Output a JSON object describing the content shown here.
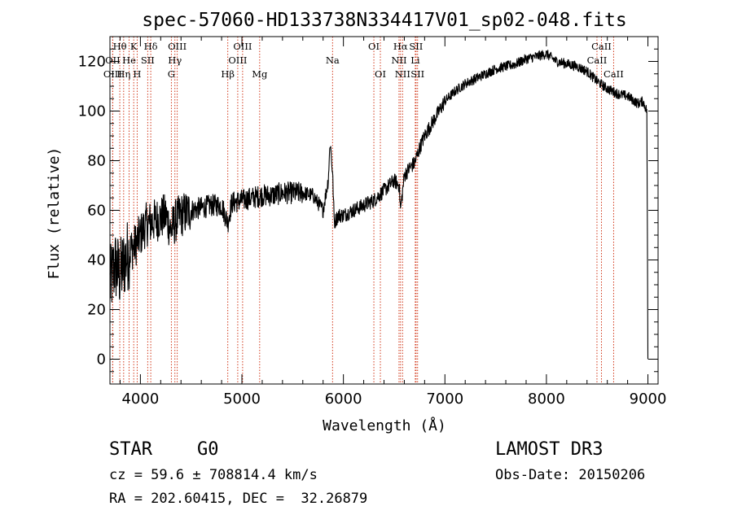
{
  "chart_data": {
    "type": "line",
    "title": "spec-57060-HD133738N334417V01_sp02-048.fits",
    "xlabel": "Wavelength (Å)",
    "ylabel": "Flux (relative)",
    "xlim": [
      3700,
      9100
    ],
    "ylim": [
      -10,
      130
    ],
    "xticks": [
      4000,
      5000,
      6000,
      7000,
      8000,
      9000
    ],
    "yticks": [
      0,
      20,
      40,
      60,
      80,
      100,
      120
    ],
    "series": [
      {
        "name": "flux",
        "x": [
          3700,
          3750,
          3800,
          3850,
          3900,
          3950,
          4000,
          4050,
          4100,
          4150,
          4200,
          4250,
          4300,
          4350,
          4400,
          4500,
          4600,
          4700,
          4800,
          4861,
          4900,
          5000,
          5100,
          5200,
          5300,
          5400,
          5500,
          5600,
          5700,
          5800,
          5850,
          5870,
          5893,
          5910,
          5950,
          6000,
          6100,
          6200,
          6300,
          6400,
          6500,
          6550,
          6563,
          6600,
          6650,
          6700,
          6750,
          6800,
          6900,
          7000,
          7100,
          7200,
          7300,
          7400,
          7500,
          7600,
          7700,
          7800,
          7900,
          8000,
          8100,
          8200,
          8300,
          8400,
          8500,
          8600,
          8700,
          8800,
          8900,
          8950,
          8990,
          9000
        ],
        "y": [
          30,
          38,
          34,
          40,
          44,
          46,
          50,
          54,
          55,
          56,
          57,
          58,
          52,
          56,
          58,
          60,
          61,
          62,
          62,
          55,
          63,
          64,
          65,
          66,
          66,
          67,
          67,
          67,
          66,
          60,
          72,
          88,
          75,
          55,
          58,
          58,
          60,
          62,
          64,
          68,
          72,
          70,
          60,
          74,
          77,
          79,
          85,
          90,
          97,
          104,
          108,
          111,
          113,
          115,
          117,
          118,
          119,
          121,
          122,
          123,
          120,
          119,
          118,
          116,
          112,
          109,
          107,
          106,
          103,
          104,
          100,
          0
        ]
      }
    ],
    "lines": [
      {
        "label": "Hθ",
        "wavelength": 3797,
        "row": 0
      },
      {
        "label": "K",
        "wavelength": 3934,
        "row": 0
      },
      {
        "label": "Hδ",
        "wavelength": 4102,
        "row": 0
      },
      {
        "label": "OIII",
        "wavelength": 4363,
        "row": 0
      },
      {
        "label": "OIII",
        "wavelength": 5007,
        "row": 0
      },
      {
        "label": "OI",
        "wavelength": 6300,
        "row": 0
      },
      {
        "label": "Hα",
        "wavelength": 6563,
        "row": 0
      },
      {
        "label": "SII",
        "wavelength": 6716,
        "row": 0
      },
      {
        "label": "CaII",
        "wavelength": 8542,
        "row": 0
      },
      {
        "label": "OII",
        "wavelength": 3727,
        "row": 1
      },
      {
        "label": "He",
        "wavelength": 3889,
        "row": 1
      },
      {
        "label": "SII",
        "wavelength": 4072,
        "row": 1
      },
      {
        "label": "Hγ",
        "wavelength": 4340,
        "row": 1
      },
      {
        "label": "OIII",
        "wavelength": 4959,
        "row": 1
      },
      {
        "label": "Na",
        "wavelength": 5893,
        "row": 1
      },
      {
        "label": "NII",
        "wavelength": 6548,
        "row": 1
      },
      {
        "label": "Li",
        "wavelength": 6708,
        "row": 1
      },
      {
        "label": "CaII",
        "wavelength": 8498,
        "row": 1
      },
      {
        "label": "OIII",
        "wavelength": 3727,
        "row": 2
      },
      {
        "label": "Hη",
        "wavelength": 3835,
        "row": 2
      },
      {
        "label": "H",
        "wavelength": 3968,
        "row": 2
      },
      {
        "label": "G",
        "wavelength": 4305,
        "row": 2
      },
      {
        "label": "Hβ",
        "wavelength": 4861,
        "row": 2
      },
      {
        "label": "Mg",
        "wavelength": 5175,
        "row": 2
      },
      {
        "label": "OI",
        "wavelength": 6364,
        "row": 2
      },
      {
        "label": "NII",
        "wavelength": 6583,
        "row": 2
      },
      {
        "label": "SII",
        "wavelength": 6731,
        "row": 2
      },
      {
        "label": "CaII",
        "wavelength": 8662,
        "row": 2
      }
    ]
  },
  "info": {
    "obj_class": "STAR",
    "subclass": "G0",
    "survey": "LAMOST DR3",
    "cz": "cz = 59.6 ± 708814.4 km/s",
    "obs_date": "Obs-Date: 20150206",
    "coords": "RA = 202.60415, DEC =  32.26879"
  },
  "colors": {
    "spectrum": "#000000",
    "line_marker": "#cc2200",
    "axis": "#000000"
  }
}
